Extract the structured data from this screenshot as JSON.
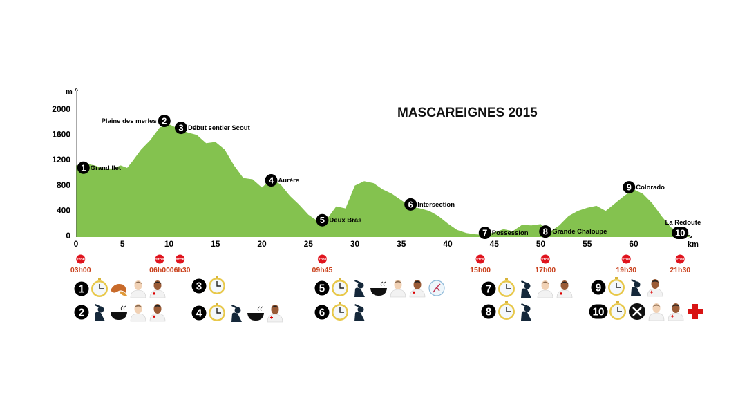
{
  "chart_data": {
    "type": "area",
    "title": "MASCAREIGNES 2015",
    "xlabel": "km",
    "ylabel": "m",
    "xlim": [
      0,
      65
    ],
    "ylim": [
      0,
      2000
    ],
    "x_ticks": [
      "0",
      "5",
      "10",
      "15",
      "20",
      "25",
      "30",
      "35",
      "40",
      "45",
      "50",
      "55",
      "60"
    ],
    "y_ticks": [
      "0",
      "400",
      "800",
      "1200",
      "1600",
      "2000"
    ],
    "grid": false,
    "fill_color": "#84c24f",
    "series": [
      {
        "x": [
          0,
          1,
          2,
          3,
          4,
          4.8,
          5.5,
          6,
          7,
          8,
          9,
          10,
          11,
          12,
          13,
          14,
          15,
          16,
          17,
          18,
          19,
          20,
          21,
          22,
          23,
          24,
          25,
          26,
          27,
          28,
          29,
          29.5,
          30,
          31,
          32,
          33,
          34,
          35,
          36,
          37,
          38,
          39,
          40,
          41,
          42,
          43,
          44,
          45,
          46,
          47,
          48,
          49,
          50,
          51,
          52,
          53,
          54,
          55,
          56,
          57,
          58,
          59,
          60,
          61,
          62,
          63,
          64,
          65,
          66
        ],
        "y": [
          1100,
          1130,
          1100,
          1050,
          1050,
          1100,
          1060,
          1150,
          1350,
          1500,
          1700,
          1750,
          1680,
          1620,
          1580,
          1450,
          1470,
          1350,
          1100,
          900,
          880,
          750,
          880,
          800,
          620,
          480,
          320,
          220,
          250,
          450,
          420,
          600,
          780,
          850,
          820,
          720,
          650,
          550,
          450,
          420,
          380,
          300,
          180,
          80,
          30,
          10,
          0,
          40,
          90,
          60,
          160,
          150,
          170,
          50,
          150,
          300,
          380,
          430,
          460,
          380,
          500,
          620,
          720,
          650,
          500,
          300,
          120,
          30,
          0
        ]
      }
    ],
    "waypoints": [
      {
        "n": "1",
        "name": "Grand Ilet",
        "km": 0.8,
        "m": 1030,
        "side": "right"
      },
      {
        "n": "2",
        "name": "Plaine des merles",
        "km": 9.5,
        "m": 1770,
        "side": "left"
      },
      {
        "n": "3",
        "name": "Début sentier Scout",
        "km": 11.3,
        "m": 1660,
        "side": "right"
      },
      {
        "n": "4",
        "name": "Aurère",
        "km": 21,
        "m": 830,
        "side": "right"
      },
      {
        "n": "5",
        "name": "Deux Bras",
        "km": 26.5,
        "m": 200,
        "side": "right"
      },
      {
        "n": "6",
        "name": "Intersection",
        "km": 36,
        "m": 450,
        "side": "right"
      },
      {
        "n": "7",
        "name": "Possession",
        "km": 44,
        "m": 0,
        "side": "right"
      },
      {
        "n": "8",
        "name": "Grande Chaloupe",
        "km": 50.5,
        "m": 20,
        "side": "right"
      },
      {
        "n": "9",
        "name": "Colorado",
        "km": 59.5,
        "m": 720,
        "side": "right"
      },
      {
        "n": "10",
        "name": "La Redoute",
        "km": 65,
        "m": 0,
        "side": "above"
      }
    ],
    "cutoffs": [
      {
        "km": 0.5,
        "time": "03h00"
      },
      {
        "km": 9,
        "time": "06h00"
      },
      {
        "km": 11.2,
        "time": "06h30"
      },
      {
        "km": 26.5,
        "time": "09h45"
      },
      {
        "km": 43.5,
        "time": "15h00"
      },
      {
        "km": 50.5,
        "time": "17h00"
      },
      {
        "km": 59.2,
        "time": "19h30"
      },
      {
        "km": 65,
        "time": "21h30"
      }
    ],
    "stop_sign_text": "STOP",
    "stop_color": "#e0141e",
    "time_color": "#c9401c"
  },
  "services": [
    {
      "n": "1",
      "icons": [
        "stopwatch",
        "croissant",
        "doctor",
        "medic"
      ]
    },
    {
      "n": "2",
      "icons": [
        "drinker",
        "soup",
        "doctor",
        "medic"
      ]
    },
    {
      "n": "3",
      "icons": [
        "stopwatch"
      ]
    },
    {
      "n": "4",
      "icons": [
        "stopwatch",
        "drinker",
        "soup",
        "medic"
      ]
    },
    {
      "n": "5",
      "icons": [
        "stopwatch",
        "drinker",
        "soup",
        "doctor",
        "medic",
        "physio"
      ]
    },
    {
      "n": "6",
      "icons": [
        "stopwatch",
        "drinker"
      ]
    },
    {
      "n": "7",
      "icons": [
        "stopwatch",
        "drinker",
        "doctor",
        "medic"
      ]
    },
    {
      "n": "8",
      "icons": [
        "stopwatch",
        "drinker"
      ]
    },
    {
      "n": "9",
      "icons": [
        "stopwatch",
        "drinker",
        "medic"
      ]
    },
    {
      "n": "10",
      "icons": [
        "stopwatch",
        "cutlery",
        "doctor",
        "medic",
        "red-cross"
      ]
    }
  ]
}
